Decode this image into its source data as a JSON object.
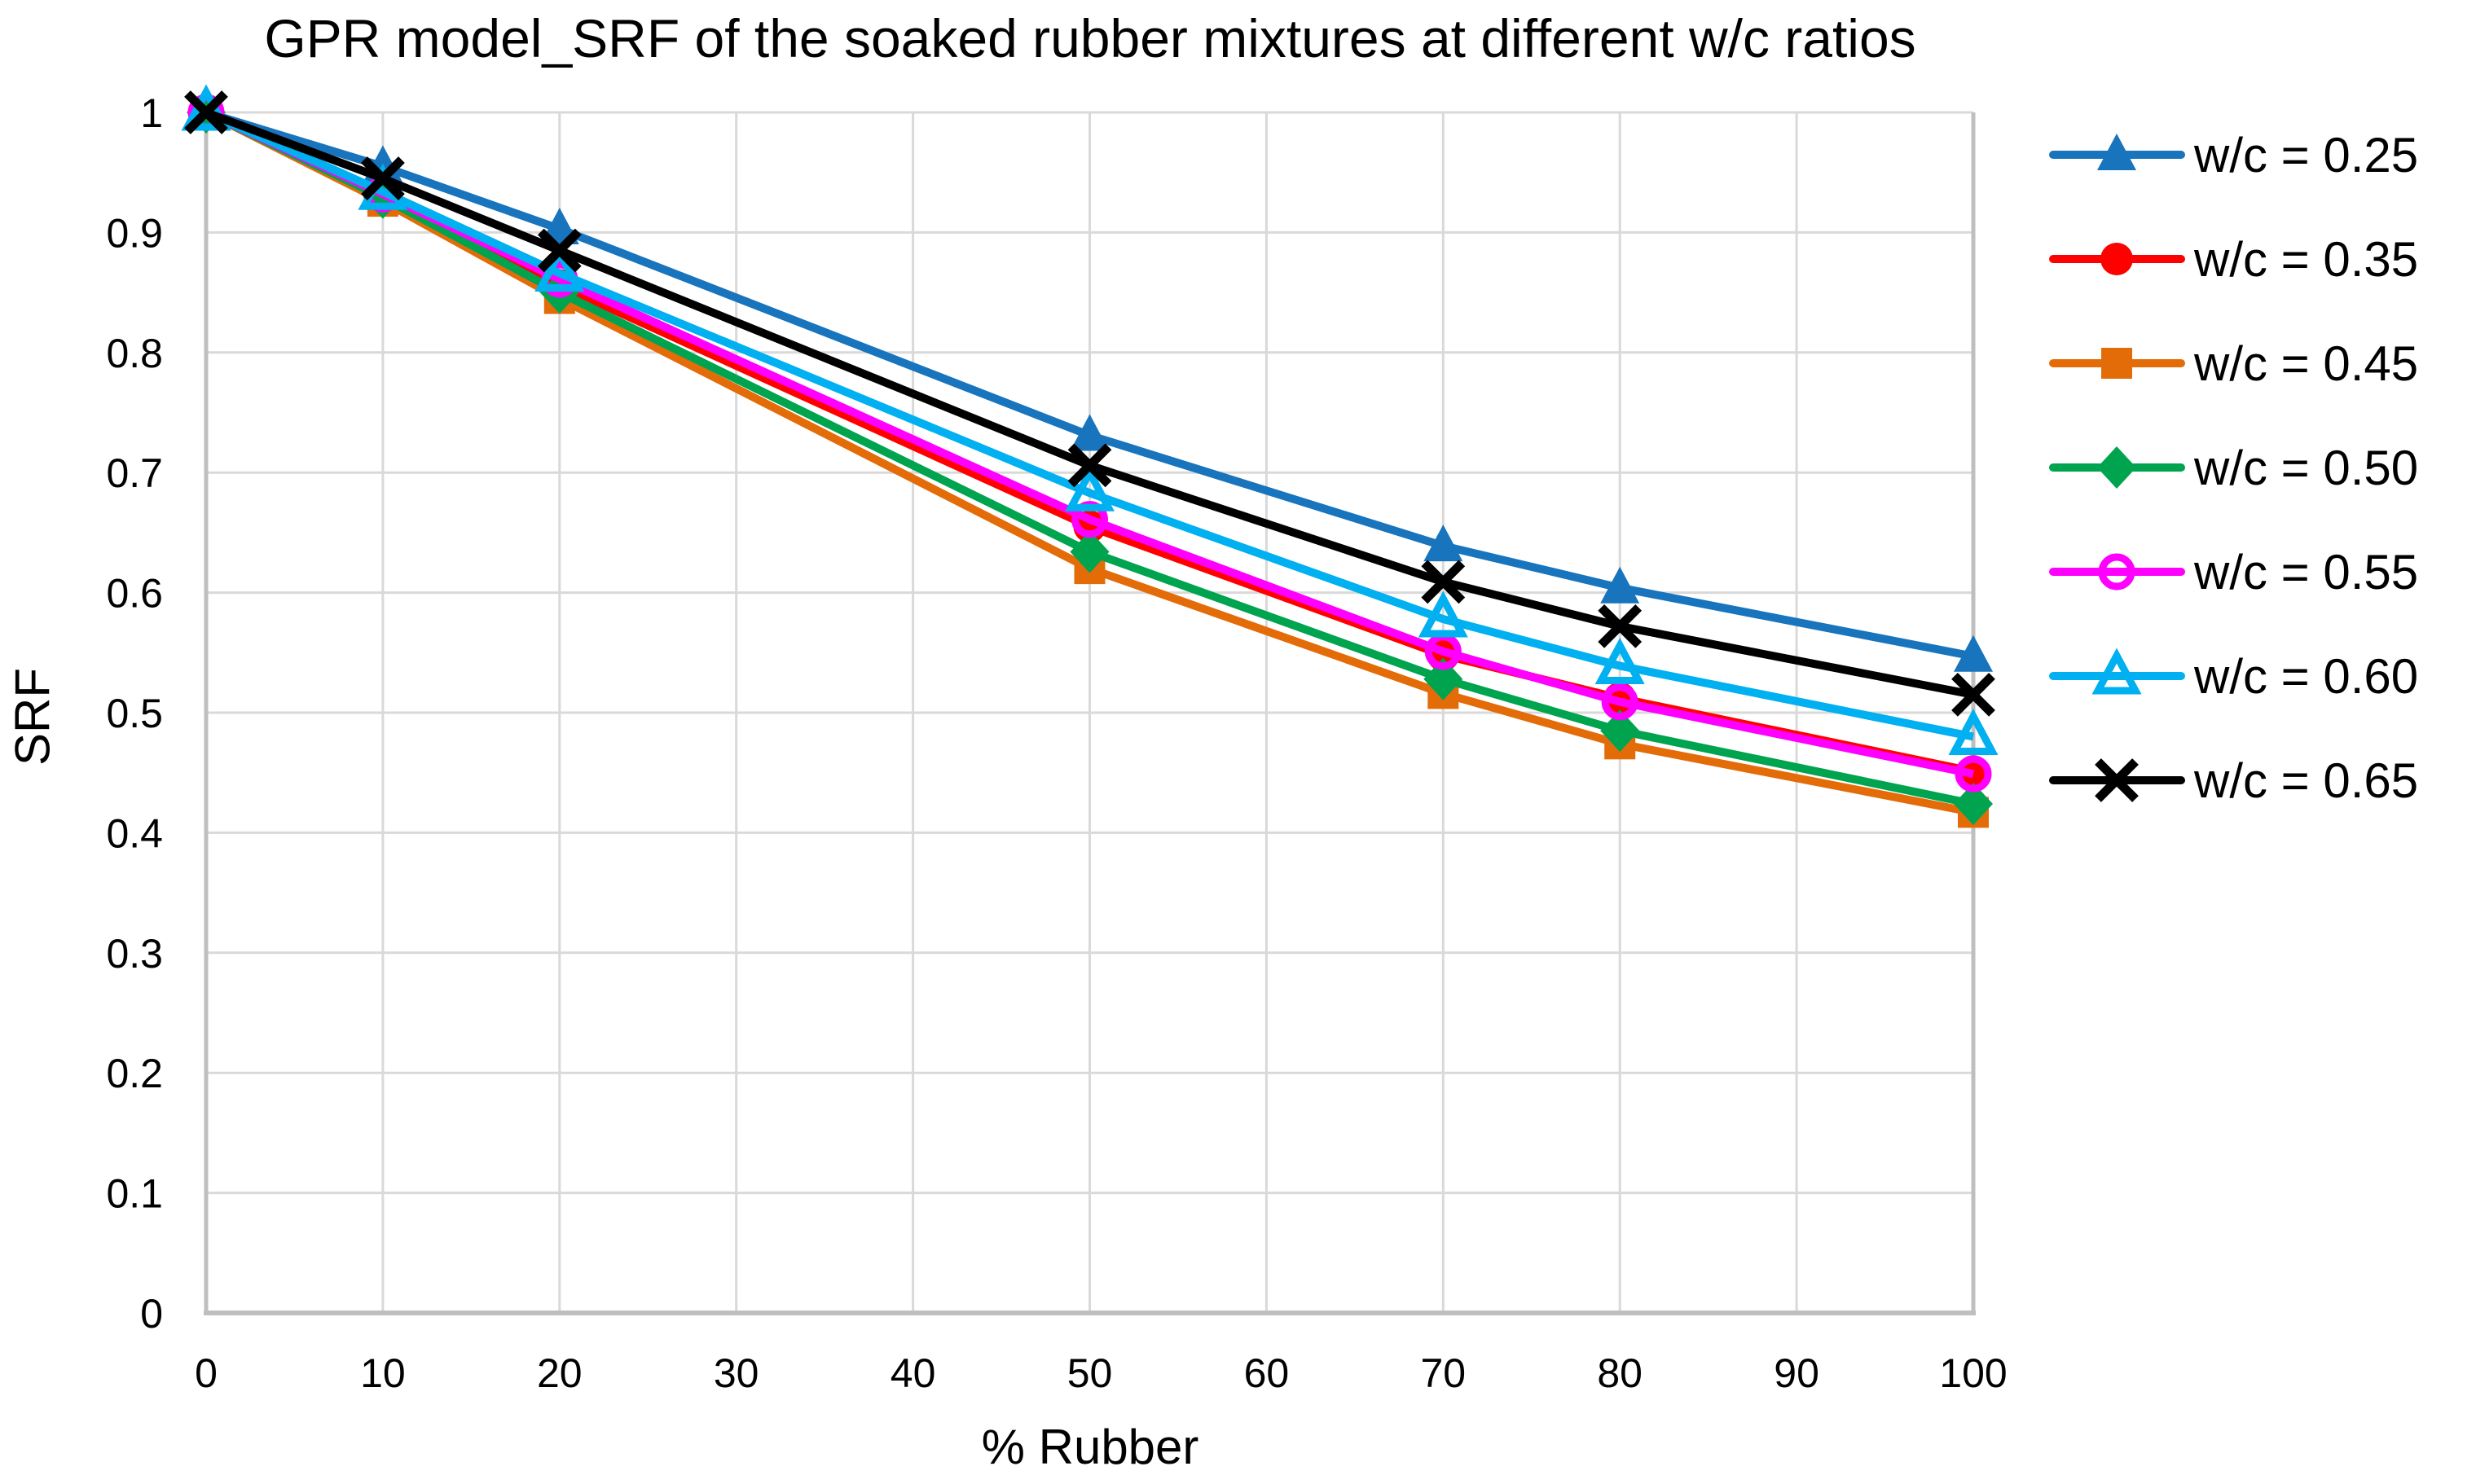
{
  "chart_data": {
    "type": "line",
    "title": "GPR model_SRF of the soaked rubber mixtures at different w/c ratios",
    "xlabel": "% Rubber",
    "ylabel": "SRF",
    "xlim": [
      0,
      100
    ],
    "ylim": [
      0,
      1
    ],
    "x_ticks": [
      0,
      10,
      20,
      30,
      40,
      50,
      60,
      70,
      80,
      90,
      100
    ],
    "y_ticks": [
      0,
      0.1,
      0.2,
      0.3,
      0.4,
      0.5,
      0.6,
      0.7,
      0.8,
      0.9,
      1
    ],
    "grid": true,
    "legend_position": "right",
    "x": [
      0,
      10,
      20,
      50,
      70,
      80,
      100
    ],
    "series": [
      {
        "name": "w/c = 0.25",
        "color": "#1874BC",
        "marker": "triangle-filled",
        "values": [
          1,
          0.955,
          0.903,
          0.731,
          0.639,
          0.604,
          0.547
        ]
      },
      {
        "name": "w/c = 0.35",
        "color": "#FF0000",
        "marker": "circle-filled",
        "values": [
          1,
          0.93,
          0.856,
          0.655,
          0.548,
          0.512,
          0.451
        ]
      },
      {
        "name": "w/c = 0.45",
        "color": "#E36C09",
        "marker": "square-filled",
        "values": [
          1,
          0.926,
          0.845,
          0.62,
          0.516,
          0.474,
          0.417
        ]
      },
      {
        "name": "w/c = 0.50",
        "color": "#00A44F",
        "marker": "diamond-filled",
        "values": [
          1,
          0.929,
          0.85,
          0.634,
          0.528,
          0.485,
          0.424
        ]
      },
      {
        "name": "w/c = 0.55",
        "color": "#FF00FF",
        "marker": "circle-open",
        "values": [
          1,
          0.932,
          0.861,
          0.661,
          0.551,
          0.509,
          0.449
        ]
      },
      {
        "name": "w/c = 0.60",
        "color": "#00B0F0",
        "marker": "triangle-open",
        "values": [
          1,
          0.934,
          0.866,
          0.683,
          0.578,
          0.539,
          0.48
        ]
      },
      {
        "name": "w/c = 0.65",
        "color": "#000000",
        "marker": "x",
        "values": [
          1,
          0.945,
          0.885,
          0.706,
          0.609,
          0.572,
          0.515
        ]
      }
    ]
  },
  "colors": {
    "background": "#FFFFFF",
    "gridline": "#D9D9D9",
    "axis_line": "#BFBFBF",
    "text": "#000000"
  }
}
